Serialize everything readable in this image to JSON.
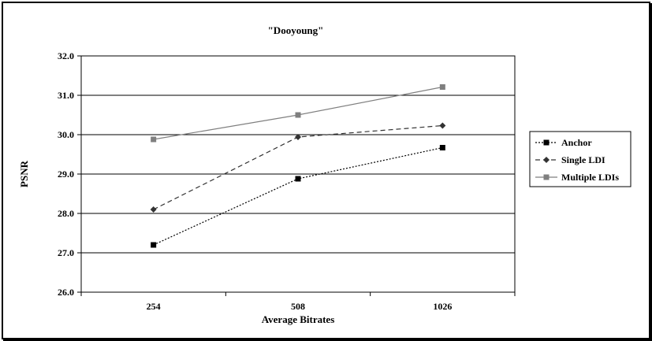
{
  "chart_data": {
    "type": "line",
    "title": "\"Dooyoung\"",
    "xlabel": "Average Bitrates",
    "ylabel": "PSNR",
    "categories": [
      "254",
      "508",
      "1026"
    ],
    "ylim": [
      26.0,
      32.0
    ],
    "yticks": [
      "26.0",
      "27.0",
      "28.0",
      "29.0",
      "30.0",
      "31.0",
      "32.0"
    ],
    "grid": true,
    "legend_position": "right",
    "series": [
      {
        "name": "Anchor",
        "values": [
          27.2,
          28.88,
          29.67
        ],
        "color": "#000000",
        "dash": "dotted",
        "marker": "square"
      },
      {
        "name": "Single LDI",
        "values": [
          28.1,
          29.94,
          30.23
        ],
        "color": "#333333",
        "dash": "dashed",
        "marker": "diamond"
      },
      {
        "name": "Multiple LDIs",
        "values": [
          29.88,
          30.5,
          31.21
        ],
        "color": "#7f7f7f",
        "dash": "solid",
        "marker": "square"
      }
    ]
  }
}
